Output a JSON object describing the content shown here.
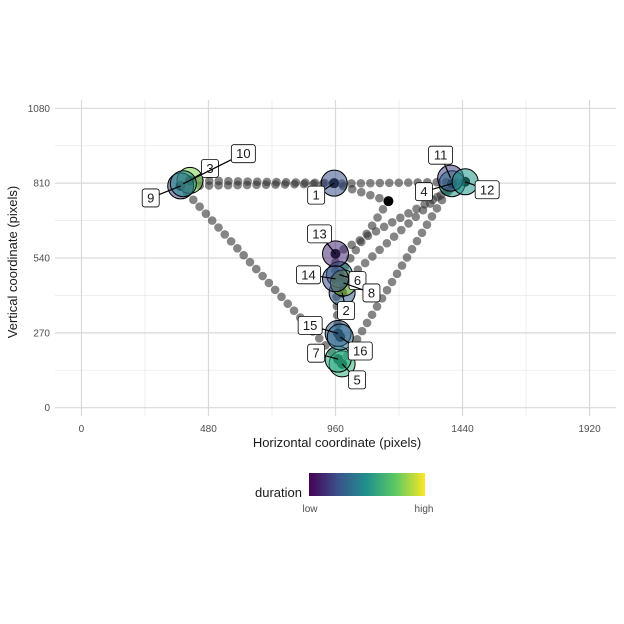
{
  "chart_data": {
    "type": "scatter",
    "xlabel": "Horizontal coordinate (pixels)",
    "ylabel": "Vertical coordinate (pixels)",
    "xlim": [
      -100,
      2020
    ],
    "ylim": [
      -30,
      1110
    ],
    "x_ticks": [
      0,
      480,
      960,
      1440,
      1920
    ],
    "y_ticks": [
      0,
      270,
      540,
      810,
      1080
    ],
    "grid": true,
    "legend": {
      "title": "duration",
      "low_label": "low",
      "high_label": "high",
      "placement": "bottom",
      "colormap": "viridis"
    },
    "fixations": [
      {
        "label": "1",
        "x": 955,
        "y": 810,
        "duration": 0.25
      },
      {
        "label": "2",
        "x": 985,
        "y": 415,
        "duration": 0.3
      },
      {
        "label": "3",
        "x": 410,
        "y": 820,
        "duration": 0.8
      },
      {
        "label": "4",
        "x": 1400,
        "y": 808,
        "duration": 0.55
      },
      {
        "label": "5",
        "x": 985,
        "y": 158,
        "duration": 0.65
      },
      {
        "label": "6",
        "x": 975,
        "y": 480,
        "duration": 0.45
      },
      {
        "label": "7",
        "x": 970,
        "y": 175,
        "duration": 0.6
      },
      {
        "label": "8",
        "x": 990,
        "y": 450,
        "duration": 0.85
      },
      {
        "label": "9",
        "x": 375,
        "y": 800,
        "duration": 0.18
      },
      {
        "label": "10",
        "x": 385,
        "y": 808,
        "duration": 0.5
      },
      {
        "label": "11",
        "x": 1395,
        "y": 828,
        "duration": 0.2
      },
      {
        "label": "12",
        "x": 1450,
        "y": 815,
        "duration": 0.52
      },
      {
        "label": "13",
        "x": 960,
        "y": 555,
        "duration": 0.12
      },
      {
        "label": "14",
        "x": 960,
        "y": 465,
        "duration": 0.22
      },
      {
        "label": "15",
        "x": 970,
        "y": 268,
        "duration": 0.3
      },
      {
        "label": "16",
        "x": 978,
        "y": 255,
        "duration": 0.35
      }
    ],
    "saccade_path": [
      [
        375,
        800
      ],
      [
        410,
        820
      ],
      [
        955,
        810
      ],
      [
        1160,
        745
      ],
      [
        975,
        480
      ],
      [
        985,
        415
      ],
      [
        990,
        450
      ],
      [
        1400,
        808
      ],
      [
        985,
        158
      ],
      [
        970,
        175
      ],
      [
        375,
        800
      ],
      [
        1450,
        815
      ],
      [
        960,
        555
      ],
      [
        960,
        465
      ],
      [
        970,
        268
      ],
      [
        978,
        255
      ]
    ],
    "label_offsets": [
      {
        "label": "1",
        "dx": -18,
        "dy": 12
      },
      {
        "label": "2",
        "dx": 4,
        "dy": 18
      },
      {
        "label": "3",
        "dx": 20,
        "dy": -12
      },
      {
        "label": "4",
        "dx": -28,
        "dy": 8
      },
      {
        "label": "5",
        "dx": 15,
        "dy": 16
      },
      {
        "label": "6",
        "dx": 18,
        "dy": 6
      },
      {
        "label": "7",
        "dx": -22,
        "dy": -6
      },
      {
        "label": "8",
        "dx": 28,
        "dy": 10
      },
      {
        "label": "9",
        "dx": -30,
        "dy": 12
      },
      {
        "label": "10",
        "dx": 60,
        "dy": -30
      },
      {
        "label": "11",
        "dx": -10,
        "dy": -23
      },
      {
        "label": "12",
        "dx": 22,
        "dy": 8
      },
      {
        "label": "13",
        "dx": -16,
        "dy": -20
      },
      {
        "label": "14",
        "dx": -27,
        "dy": -4
      },
      {
        "label": "15",
        "dx": -28,
        "dy": -8
      },
      {
        "label": "16",
        "dx": 20,
        "dy": 14
      }
    ]
  }
}
